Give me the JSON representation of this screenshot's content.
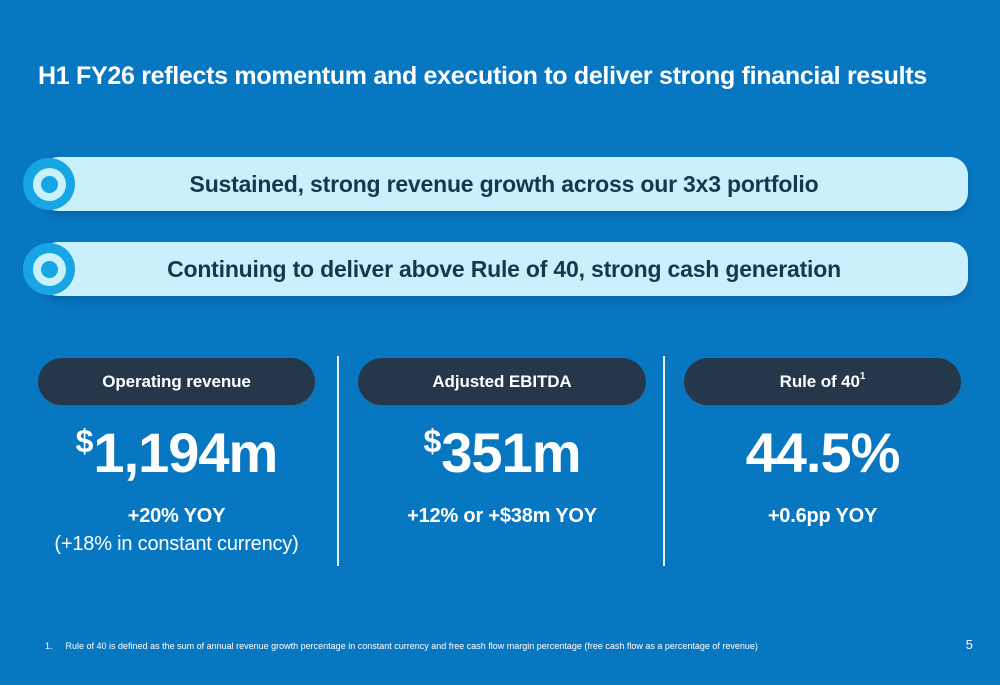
{
  "slide": {
    "title": "H1 FY26 reflects momentum and execution to deliver strong financial results",
    "page_number": "5",
    "footnote": {
      "marker": "1.",
      "text": "Rule of 40 is defined as the sum of annual revenue growth percentage in constant currency and free cash flow margin percentage (free cash flow as a percentage of revenue)"
    }
  },
  "banners": [
    {
      "icon": "bullseye-icon",
      "text": "Sustained, strong revenue growth across our 3x3 portfolio"
    },
    {
      "icon": "bullseye-icon",
      "text": "Continuing to deliver above Rule of 40, strong cash generation"
    }
  ],
  "metrics": [
    {
      "label": "Operating revenue",
      "label_superscript": "",
      "value_prefix": "$",
      "value": "1,194m",
      "sub_lines": [
        {
          "text": "+20% YOY"
        },
        {
          "text": "(+18% in constant currency)"
        }
      ]
    },
    {
      "label": "Adjusted EBITDA",
      "label_superscript": "",
      "value_prefix": "$",
      "value": "351m",
      "sub_lines": [
        {
          "text": "+12% or +$38m YOY"
        }
      ]
    },
    {
      "label": "Rule of 40",
      "label_superscript": "1",
      "value_prefix": "",
      "value": "44.5%",
      "sub_lines": [
        {
          "text": "+0.6pp YOY"
        }
      ]
    }
  ],
  "colors": {
    "background": "#0877C2",
    "banner_fill": "#C9F0FB",
    "banner_text": "#16384B",
    "bullseye_accent": "#18A5E3",
    "pill_navy": "#25384B",
    "text_white": "#FFFFFF"
  }
}
